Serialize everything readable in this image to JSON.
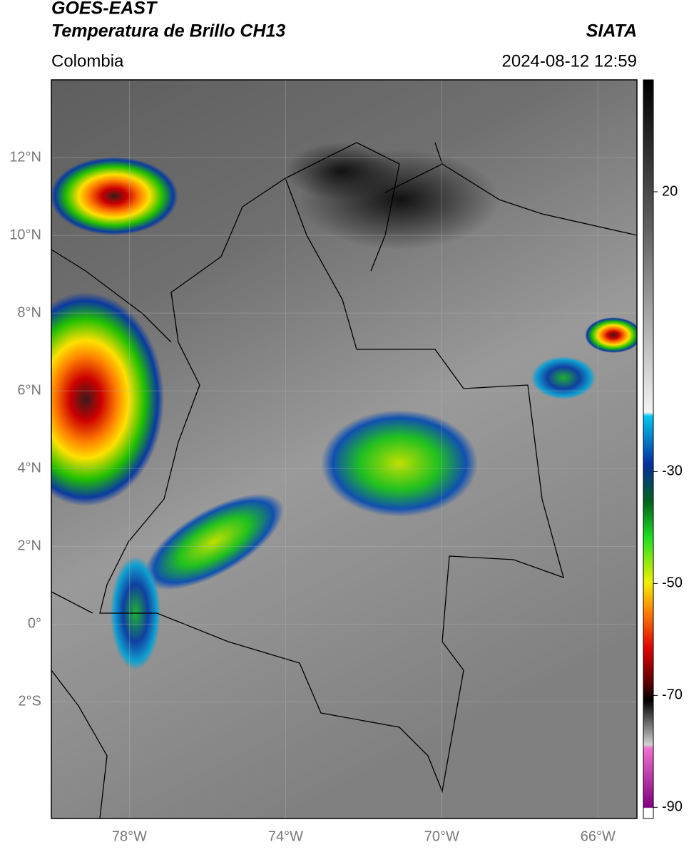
{
  "header": {
    "title": "GOES-EAST",
    "subtitle": "Temperatura de Brillo CH13",
    "region": "Colombia",
    "source": "SIATA",
    "datetime": "2024-08-12 12:59"
  },
  "map": {
    "lon_lim": [
      -80,
      -65
    ],
    "lat_lim": [
      -5,
      14
    ],
    "lon_ticks": [
      {
        "value": -78,
        "label": "78°W"
      },
      {
        "value": -74,
        "label": "74°W"
      },
      {
        "value": -70,
        "label": "70°W"
      },
      {
        "value": -66,
        "label": "66°W"
      }
    ],
    "lat_ticks": [
      {
        "value": 12,
        "label": "12°N"
      },
      {
        "value": 10,
        "label": "10°N"
      },
      {
        "value": 8,
        "label": "8°N"
      },
      {
        "value": 6,
        "label": "6°N"
      },
      {
        "value": 4,
        "label": "4°N"
      },
      {
        "value": 2,
        "label": "2°N"
      },
      {
        "value": 0,
        "label": "0°"
      },
      {
        "value": -2,
        "label": "2°S"
      }
    ]
  },
  "colorbar": {
    "lim": [
      -92,
      40
    ],
    "ticks": [
      20,
      -30,
      -50,
      -70,
      -90
    ]
  }
}
